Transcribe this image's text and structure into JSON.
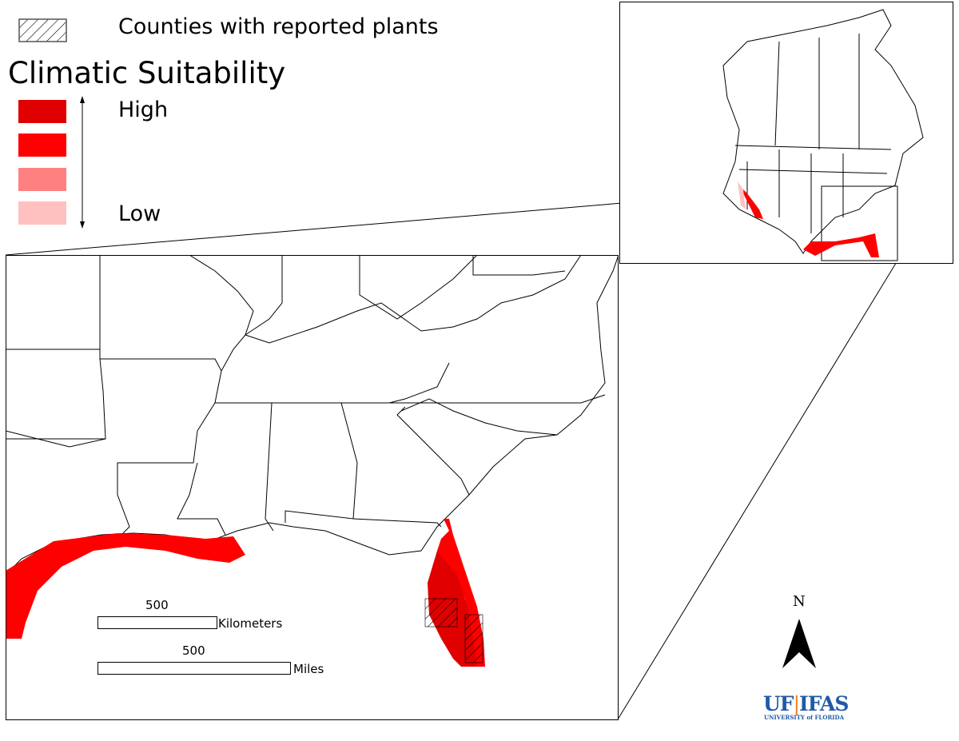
{
  "legend": {
    "hatch_label": "Counties with reported plants",
    "title": "Climatic Suitability",
    "high_label": "High",
    "low_label": "Low",
    "classes": [
      {
        "level": "highest",
        "color": "#e00000"
      },
      {
        "level": "high",
        "color": "#ff0000"
      },
      {
        "level": "low",
        "color": "#ff8080"
      },
      {
        "level": "lowest",
        "color": "#ffc0c0"
      }
    ]
  },
  "scale": {
    "km_value": "500",
    "km_unit": "Kilometers",
    "mi_value": "500",
    "mi_unit": "Miles"
  },
  "north_arrow": {
    "label": "N"
  },
  "logo": {
    "main_left": "UF",
    "main_right": "IFAS",
    "sub": "UNIVERSITY of FLORIDA",
    "color": "#1f5aa8"
  },
  "colors": {
    "suitability_fill": "#ff0000",
    "boundary": "#000000"
  }
}
